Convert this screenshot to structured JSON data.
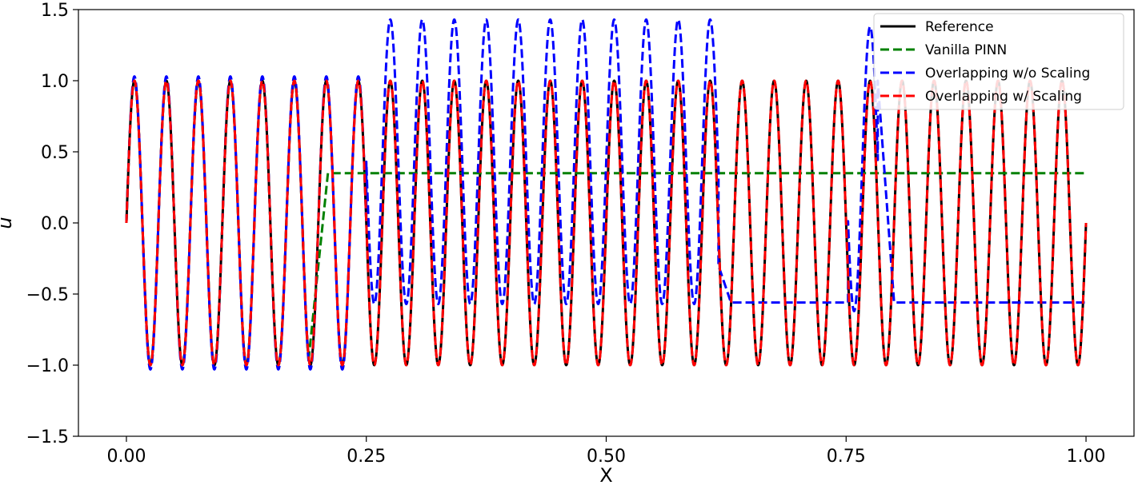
{
  "chart_data": {
    "type": "line",
    "title": "",
    "xlabel": "X",
    "ylabel": "u",
    "xlim": [
      -0.05,
      1.05
    ],
    "ylim": [
      -1.5,
      1.5
    ],
    "xticks": [
      0.0,
      0.25,
      0.5,
      0.75,
      1.0
    ],
    "xtick_labels": [
      "0.00",
      "0.25",
      "0.50",
      "0.75",
      "1.00"
    ],
    "yticks": [
      -1.5,
      -1.0,
      -0.5,
      0.0,
      0.5,
      1.0,
      1.5
    ],
    "ytick_labels": [
      "−1.5",
      "−1.0",
      "−0.5",
      "0.0",
      "0.5",
      "1.0",
      "1.5"
    ],
    "grid": false,
    "legend_position": "top-right",
    "series": [
      {
        "name": "Reference",
        "color": "#000000",
        "style": "solid",
        "description": "sin(2*pi*30*x) on [0,1]",
        "segments": [
          {
            "x_start": 0.0,
            "x_end": 1.0,
            "kind": "sine",
            "freq": 30,
            "amp": 1.0,
            "offset": 0.0
          }
        ]
      },
      {
        "name": "Vanilla PINN",
        "color": "#008000",
        "style": "dashed",
        "segments": [
          {
            "x_start": 0.0,
            "x_end": 0.19,
            "kind": "sine",
            "freq": 30,
            "amp": 1.0,
            "offset": 0.0
          },
          {
            "x_start": 0.19,
            "x_end": 0.21,
            "kind": "ramp",
            "y_start": -0.95,
            "y_end": 0.35
          },
          {
            "x_start": 0.21,
            "x_end": 1.0,
            "kind": "const",
            "value": 0.35
          }
        ]
      },
      {
        "name": "Overlapping w/o Scaling",
        "color": "#0000ff",
        "style": "dashed",
        "segments": [
          {
            "x_start": 0.0,
            "x_end": 0.25,
            "kind": "sine",
            "freq": 30,
            "amp": 1.03,
            "offset": 0.0
          },
          {
            "x_start": 0.25,
            "x_end": 0.617,
            "kind": "sine",
            "freq": 30,
            "amp": 1.0,
            "offset": 0.43
          },
          {
            "x_start": 0.617,
            "x_end": 0.63,
            "kind": "ramp",
            "y_start": -0.3,
            "y_end": -0.56
          },
          {
            "x_start": 0.63,
            "x_end": 0.752,
            "kind": "const",
            "value": -0.56
          },
          {
            "x_start": 0.752,
            "x_end": 0.783,
            "kind": "sine",
            "freq": 30,
            "amp": 1.0,
            "offset": 0.38
          },
          {
            "x_start": 0.783,
            "x_end": 0.8,
            "kind": "ramp",
            "y_start": 1.0,
            "y_end": -0.56
          },
          {
            "x_start": 0.8,
            "x_end": 1.0,
            "kind": "const",
            "value": -0.56
          }
        ]
      },
      {
        "name": "Overlapping w/ Scaling",
        "color": "#ff0000",
        "style": "dashed",
        "segments": [
          {
            "x_start": 0.0,
            "x_end": 1.0,
            "kind": "sine",
            "freq": 30,
            "amp": 1.0,
            "offset": 0.0
          }
        ]
      }
    ]
  }
}
